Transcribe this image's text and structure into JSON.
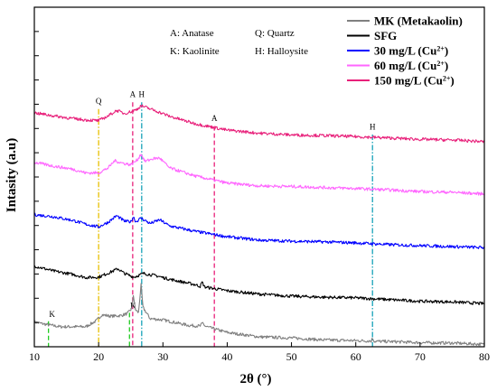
{
  "chart_data": {
    "type": "line",
    "xlabel": "2θ (°)",
    "ylabel": "Intasity (a.u)",
    "xlim": [
      10,
      80
    ],
    "xticks": [
      10,
      20,
      30,
      40,
      50,
      60,
      70,
      80
    ],
    "ylim": [
      0,
      100
    ],
    "grid": false,
    "legend_position": "top-right",
    "phase_key": [
      "A: Anatase",
      "Q: Quartz",
      "K: Kaolinite",
      "H: Halloysite"
    ],
    "series": [
      {
        "name": "MK (Metakaolin)",
        "color": "#808080",
        "baseline": 8,
        "points": [
          [
            10,
            7.3
          ],
          [
            12,
            6.5
          ],
          [
            14,
            5.9
          ],
          [
            16,
            5.9
          ],
          [
            18,
            5.9
          ],
          [
            19.6,
            7.6
          ],
          [
            20.5,
            9.4
          ],
          [
            22,
            9.0
          ],
          [
            23.5,
            9.2
          ],
          [
            24.5,
            9.8
          ],
          [
            25.2,
            11.4
          ],
          [
            25.4,
            15.3
          ],
          [
            25.7,
            11.0
          ],
          [
            26.2,
            10.0
          ],
          [
            26.6,
            18.2
          ],
          [
            26.9,
            11.6
          ],
          [
            28,
            8.3
          ],
          [
            30,
            7.9
          ],
          [
            34,
            6.3
          ],
          [
            35.8,
            6.1
          ],
          [
            36.2,
            7.0
          ],
          [
            36.6,
            6.0
          ],
          [
            40,
            4.2
          ],
          [
            45,
            2.9
          ],
          [
            50,
            2.6
          ],
          [
            55,
            2.0
          ],
          [
            60,
            1.8
          ],
          [
            62.4,
            1.7
          ],
          [
            62.6,
            2.6
          ],
          [
            62.9,
            1.6
          ],
          [
            66,
            1.5
          ],
          [
            70,
            1.2
          ],
          [
            75,
            1.1
          ],
          [
            80,
            0.7
          ]
        ]
      },
      {
        "name": "SFG",
        "color": "#000000",
        "points": [
          [
            10,
            23.8
          ],
          [
            13,
            22.3
          ],
          [
            16,
            21.3
          ],
          [
            18,
            20.4
          ],
          [
            20,
            20.5
          ],
          [
            22,
            22.1
          ],
          [
            23,
            23.0
          ],
          [
            24,
            21.6
          ],
          [
            25.5,
            20.5
          ],
          [
            27,
            21.6
          ],
          [
            29,
            20.9
          ],
          [
            31,
            19.9
          ],
          [
            35,
            18.3
          ],
          [
            35.8,
            17.8
          ],
          [
            36.1,
            19.0
          ],
          [
            36.5,
            17.6
          ],
          [
            40,
            16.5
          ],
          [
            45,
            15.5
          ],
          [
            50,
            14.9
          ],
          [
            55,
            14.6
          ],
          [
            60,
            14.4
          ],
          [
            65,
            13.9
          ],
          [
            70,
            13.4
          ],
          [
            75,
            13.2
          ],
          [
            80,
            12.7
          ]
        ]
      },
      {
        "name": "30 mg/L  (Cu²⁺)",
        "color": "#0000ff",
        "points": [
          [
            10,
            38.9
          ],
          [
            13,
            38.3
          ],
          [
            16,
            37.2
          ],
          [
            18,
            36.1
          ],
          [
            20,
            35.3
          ],
          [
            21.5,
            36.7
          ],
          [
            22.8,
            38.6
          ],
          [
            24,
            37.0
          ],
          [
            25,
            36.8
          ],
          [
            25.4,
            38.3
          ],
          [
            25.8,
            36.8
          ],
          [
            26.6,
            37.9
          ],
          [
            28,
            36.3
          ],
          [
            29.5,
            37.4
          ],
          [
            31,
            35.6
          ],
          [
            35,
            34.0
          ],
          [
            40,
            32.4
          ],
          [
            45,
            31.4
          ],
          [
            50,
            31.1
          ],
          [
            55,
            30.9
          ],
          [
            60,
            30.6
          ],
          [
            65,
            30.1
          ],
          [
            70,
            29.8
          ],
          [
            75,
            29.5
          ],
          [
            80,
            29.2
          ]
        ]
      },
      {
        "name": "60 mg/L  (Cu²⁺)",
        "color": "#ff66ff",
        "points": [
          [
            10,
            54.3
          ],
          [
            13,
            53.2
          ],
          [
            16,
            52.3
          ],
          [
            18,
            51.2
          ],
          [
            20,
            51.2
          ],
          [
            21.5,
            52.7
          ],
          [
            22.5,
            54.8
          ],
          [
            23.5,
            54.2
          ],
          [
            25,
            53.6
          ],
          [
            26,
            55.0
          ],
          [
            26.6,
            56.8
          ],
          [
            27.2,
            54.6
          ],
          [
            28.5,
            55.4
          ],
          [
            29.5,
            55.6
          ],
          [
            31,
            52.7
          ],
          [
            35,
            50.3
          ],
          [
            40,
            48.2
          ],
          [
            45,
            47.4
          ],
          [
            50,
            47.2
          ],
          [
            55,
            46.9
          ],
          [
            60,
            46.6
          ],
          [
            65,
            46.2
          ],
          [
            70,
            45.7
          ],
          [
            75,
            45.5
          ],
          [
            80,
            45.0
          ]
        ]
      },
      {
        "name": "150 mg/L (Cu²⁺)",
        "color": "#e8207a",
        "points": [
          [
            10,
            68.9
          ],
          [
            13,
            68.0
          ],
          [
            16,
            67.2
          ],
          [
            18,
            66.8
          ],
          [
            20,
            66.6
          ],
          [
            21.5,
            68.0
          ],
          [
            22.8,
            69.6
          ],
          [
            24,
            68.7
          ],
          [
            25.3,
            69.4
          ],
          [
            26,
            70.0
          ],
          [
            26.6,
            71.0
          ],
          [
            27.5,
            70.4
          ],
          [
            29,
            69.4
          ],
          [
            31,
            67.9
          ],
          [
            35,
            65.7
          ],
          [
            40,
            63.8
          ],
          [
            45,
            62.9
          ],
          [
            50,
            62.4
          ],
          [
            55,
            62.2
          ],
          [
            60,
            61.9
          ],
          [
            65,
            61.5
          ],
          [
            70,
            61.1
          ],
          [
            75,
            60.9
          ],
          [
            80,
            60.4
          ]
        ]
      }
    ],
    "reference_lines": [
      {
        "x": 20.0,
        "color": "#e8c000",
        "dash": "dashdot",
        "top": 70,
        "label": "Q",
        "label_y": 71.5
      },
      {
        "x": 25.3,
        "color": "#e8207a",
        "dash": "dash",
        "top": 72,
        "label": "A",
        "label_y": 73.5
      },
      {
        "x": 26.7,
        "color": "#17a2b8",
        "dash": "dashdot",
        "top": 72,
        "label": "H",
        "label_y": 73.5
      },
      {
        "x": 38.0,
        "color": "#e8207a",
        "dash": "dash",
        "top": 65,
        "label": "A",
        "label_y": 66.5
      },
      {
        "x": 62.6,
        "color": "#17a2b8",
        "dash": "dashdot",
        "top": 62.5,
        "label": "H",
        "label_y": 64
      },
      {
        "x": 12.2,
        "color": "#22cc22",
        "dash": "dash",
        "top": 7.5,
        "label": "K",
        "label_y": 8.8
      },
      {
        "x": 24.8,
        "color": "#22cc22",
        "dash": "dash",
        "top": 10,
        "label": "K",
        "label_y": 11.3
      }
    ]
  }
}
